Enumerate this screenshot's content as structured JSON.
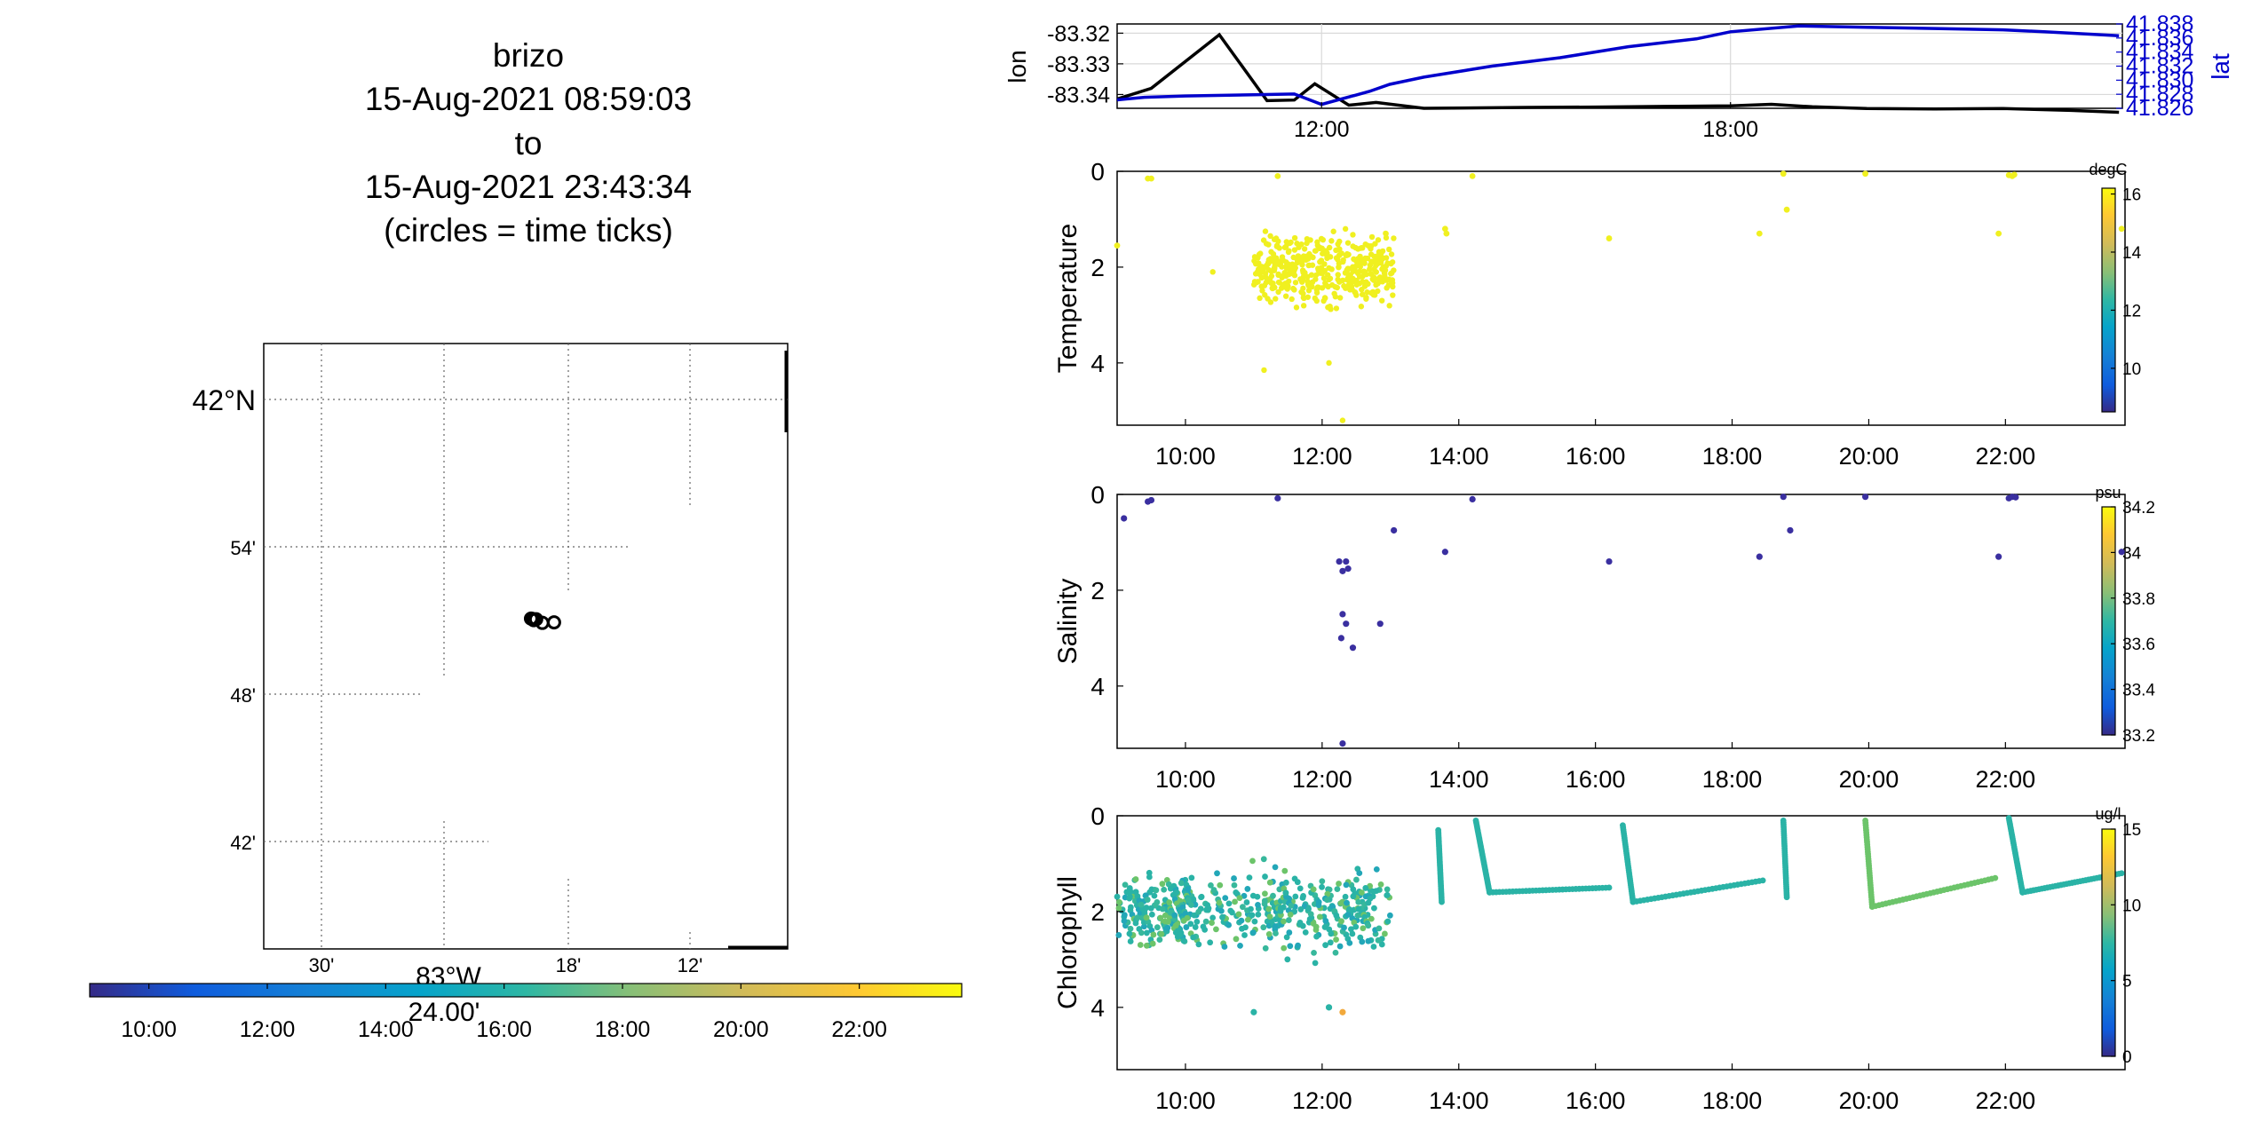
{
  "title": {
    "name": "brizo",
    "start": "15-Aug-2021 08:59:03",
    "to": "to",
    "end": "15-Aug-2021 23:43:34",
    "note": "(circles = time ticks)"
  },
  "colors": {
    "axis": "#000000",
    "grid": "#d9d9d9",
    "lon_line": "#000000",
    "lat_line": "#0000cc",
    "temperature_points": "#f0f020",
    "salinity_points": "#3a2fa0",
    "chlorophyll_teal": "#2ab3a6",
    "chlorophyll_green": "#6cc46a",
    "chlorophyll_orange": "#f2a93b",
    "parula": [
      "#352a87",
      "#0f5cdd",
      "#1481d6",
      "#06a4ca",
      "#2eb7a4",
      "#87bf77",
      "#d1bb59",
      "#fec832",
      "#f9fb0e"
    ]
  },
  "chart_data": [
    {
      "type": "map-track",
      "lat_ticks": [
        "42°N",
        "54'",
        "48'",
        "42'"
      ],
      "lon_ticks": [
        "30'",
        "18'",
        "12'"
      ],
      "lon_label": "83°W",
      "lon_label_right": "24.00'",
      "grid": true,
      "track_circles": [
        {
          "lon": -83.3432,
          "lat": 41.8387
        },
        {
          "lon": -83.342,
          "lat": 41.8385
        },
        {
          "lon": -83.341,
          "lat": 41.8378
        },
        {
          "lon": -83.339,
          "lat": 41.8383
        },
        {
          "lon": -83.334,
          "lat": 41.8362
        },
        {
          "lon": -83.3245,
          "lat": 41.8365
        }
      ]
    },
    {
      "type": "colorbar",
      "orientation": "horizontal",
      "ticks": [
        "10:00",
        "12:00",
        "14:00",
        "16:00",
        "18:00",
        "20:00",
        "22:00"
      ]
    },
    {
      "type": "line",
      "xlabel": "",
      "ylabel": "lon",
      "ylabel_right": "lat",
      "x_ticks": [
        "12:00",
        "18:00"
      ],
      "y_ticks_left": [
        "-83.32",
        "-83.33",
        "-83.34"
      ],
      "y_ticks_right": [
        "41.838",
        "41.836",
        "41.834",
        "41.832",
        "41.830",
        "41.828",
        "41.826"
      ],
      "ylim_left": [
        -83.3445,
        -83.317
      ],
      "ylim_right": [
        41.8255,
        41.8385
      ],
      "grid": true,
      "series": [
        {
          "name": "lon",
          "axis": "left",
          "x": [
            9.0,
            9.5,
            10.5,
            11.2,
            11.6,
            11.9,
            12.4,
            12.8,
            13.5,
            15.0,
            16.0,
            17.0,
            18.0,
            18.6,
            19.2,
            20.0,
            21.0,
            22.0,
            23.0,
            23.7
          ],
          "values": [
            -83.3415,
            -83.338,
            -83.3205,
            -83.342,
            -83.3418,
            -83.3365,
            -83.3435,
            -83.3426,
            -83.3445,
            -83.3442,
            -83.3441,
            -83.3439,
            -83.3437,
            -83.3432,
            -83.344,
            -83.3446,
            -83.3447,
            -83.3446,
            -83.3452,
            -83.3458
          ]
        },
        {
          "name": "lat",
          "axis": "right",
          "x": [
            9.0,
            9.4,
            10.0,
            11.0,
            11.6,
            12.0,
            12.7,
            13.0,
            13.5,
            14.5,
            15.5,
            16.5,
            17.5,
            18.0,
            19.0,
            20.0,
            21.0,
            22.0,
            22.6,
            23.7
          ],
          "values": [
            41.8268,
            41.8272,
            41.8274,
            41.8276,
            41.8277,
            41.8261,
            41.8281,
            41.8292,
            41.8303,
            41.832,
            41.8333,
            41.835,
            41.8362,
            41.8373,
            41.8382,
            41.838,
            41.8378,
            41.8376,
            41.8373,
            41.8367
          ]
        }
      ]
    },
    {
      "type": "scatter",
      "ylabel": "Temperature",
      "colorbar_label": "degC",
      "colorbar_ticks": [
        "16",
        "14",
        "12",
        "10"
      ],
      "colorbar_range": [
        8.5,
        16.2
      ],
      "x_ticks": [
        "10:00",
        "12:00",
        "14:00",
        "16:00",
        "18:00",
        "20:00",
        "22:00"
      ],
      "y_ticks": [
        "0",
        "2",
        "4"
      ],
      "ylim": [
        0,
        5.3
      ],
      "xlim": [
        9.0,
        23.75
      ],
      "yreversed": true,
      "cloud": {
        "x_range": [
          11.0,
          13.05
        ],
        "y_range": [
          0.4,
          3.8
        ],
        "count": 420,
        "color": "#f0f020",
        "extra": [
          [
            11.15,
            4.15
          ],
          [
            12.1,
            4.0
          ],
          [
            12.3,
            5.2
          ],
          [
            10.4,
            2.1
          ]
        ]
      },
      "scattered_points": [
        [
          9.0,
          1.55
        ],
        [
          9.45,
          0.15
        ],
        [
          9.5,
          0.15
        ],
        [
          11.35,
          0.1
        ],
        [
          13.8,
          1.2
        ],
        [
          13.82,
          1.3
        ],
        [
          14.2,
          0.1
        ],
        [
          16.2,
          1.4
        ],
        [
          18.4,
          1.3
        ],
        [
          18.75,
          0.05
        ],
        [
          18.8,
          0.8
        ],
        [
          19.95,
          0.05
        ],
        [
          21.9,
          1.3
        ],
        [
          22.05,
          0.08
        ],
        [
          22.1,
          0.1
        ],
        [
          22.13,
          0.07
        ],
        [
          23.7,
          1.2
        ]
      ]
    },
    {
      "type": "scatter",
      "ylabel": "Salinity",
      "colorbar_label": "psu",
      "colorbar_ticks": [
        "34.2",
        "34",
        "33.8",
        "33.6",
        "33.4",
        "33.2"
      ],
      "colorbar_range": [
        33.2,
        34.2
      ],
      "x_ticks": [
        "10:00",
        "12:00",
        "14:00",
        "16:00",
        "18:00",
        "20:00",
        "22:00"
      ],
      "y_ticks": [
        "0",
        "2",
        "4"
      ],
      "ylim": [
        0,
        5.3
      ],
      "xlim": [
        9.0,
        23.75
      ],
      "yreversed": true,
      "points_color": "#3a2fa0",
      "points": [
        [
          9.1,
          0.5
        ],
        [
          9.45,
          0.15
        ],
        [
          9.5,
          0.12
        ],
        [
          11.35,
          0.08
        ],
        [
          12.25,
          1.4
        ],
        [
          12.35,
          1.4
        ],
        [
          12.3,
          1.6
        ],
        [
          12.38,
          1.55
        ],
        [
          12.3,
          2.5
        ],
        [
          12.35,
          2.7
        ],
        [
          12.28,
          3.0
        ],
        [
          12.45,
          3.2
        ],
        [
          12.3,
          5.2
        ],
        [
          12.85,
          2.7
        ],
        [
          13.05,
          0.75
        ],
        [
          13.8,
          1.2
        ],
        [
          14.2,
          0.1
        ],
        [
          16.2,
          1.4
        ],
        [
          18.4,
          1.3
        ],
        [
          18.75,
          0.05
        ],
        [
          18.85,
          0.75
        ],
        [
          19.95,
          0.05
        ],
        [
          21.9,
          1.3
        ],
        [
          22.05,
          0.08
        ],
        [
          22.1,
          0.05
        ],
        [
          22.15,
          0.06
        ],
        [
          23.7,
          1.2
        ]
      ]
    },
    {
      "type": "scatter",
      "ylabel": "Chlorophyll",
      "colorbar_label": "ug/l",
      "colorbar_ticks": [
        "15",
        "10",
        "5",
        "0"
      ],
      "colorbar_range": [
        0,
        15
      ],
      "x_ticks": [
        "10:00",
        "12:00",
        "14:00",
        "16:00",
        "18:00",
        "20:00",
        "22:00"
      ],
      "y_ticks": [
        "0",
        "2",
        "4"
      ],
      "ylim": [
        0,
        5.3
      ],
      "xlim": [
        9.0,
        23.75
      ],
      "yreversed": true,
      "cloud": {
        "x_range": [
          9.0,
          13.0
        ],
        "y_range": [
          0.1,
          3.8
        ],
        "count": 520,
        "colors": [
          "#2ab3a6",
          "#2ab3a6",
          "#37b89c",
          "#6cc46a",
          "#22a7b8"
        ],
        "extra": [
          [
            12.3,
            4.1,
            "#f2a93b"
          ],
          [
            11.0,
            4.1,
            "#2ab3a6"
          ],
          [
            12.1,
            4.0,
            "#2ab3a6"
          ]
        ]
      },
      "profiles": [
        {
          "segments": [
            [
              13.7,
              0.3,
              13.75,
              1.8
            ],
            [
              14.25,
              0.1,
              14.45,
              1.6
            ],
            [
              14.45,
              1.6,
              16.2,
              1.5
            ]
          ],
          "color": "#2ab3a6"
        },
        {
          "segments": [
            [
              16.4,
              0.2,
              16.55,
              1.8
            ],
            [
              16.55,
              1.8,
              18.45,
              1.35
            ]
          ],
          "color": "#2ab3a6"
        },
        {
          "segments": [
            [
              18.75,
              0.1,
              18.8,
              1.7
            ]
          ],
          "color": "#2ab3a6"
        },
        {
          "segments": [
            [
              19.95,
              0.1,
              20.05,
              1.9
            ],
            [
              20.05,
              1.9,
              21.85,
              1.3
            ]
          ],
          "color": "#6cc46a"
        },
        {
          "segments": [
            [
              22.05,
              0.05,
              22.25,
              1.6
            ],
            [
              22.25,
              1.6,
              23.7,
              1.2
            ]
          ],
          "color": "#2ab3a6"
        }
      ]
    }
  ]
}
